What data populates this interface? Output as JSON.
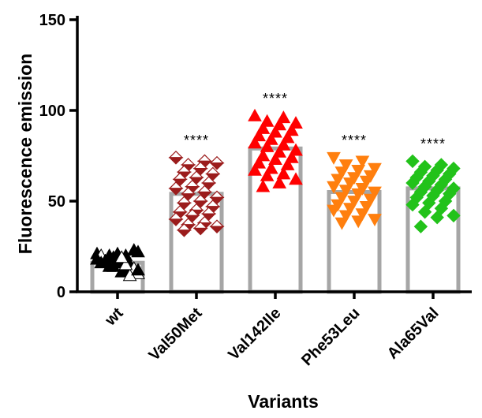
{
  "chart_data": {
    "type": "bar",
    "subtype": "bar-with-scatter-points",
    "title": "",
    "xlabel": "Variants",
    "ylabel": "Fluorescence emission",
    "ylim": [
      0,
      150
    ],
    "yticks": [
      0,
      50,
      100,
      150
    ],
    "categories": [
      "wt",
      "Val50Met",
      "Val142Ile",
      "Phe53Leu",
      "Ala65Val"
    ],
    "values": [
      16,
      54,
      79,
      55,
      57
    ],
    "significance": [
      "",
      "****",
      "****",
      "****",
      "****"
    ],
    "bar_color": "#a6a6a6",
    "points": [
      {
        "category": "wt",
        "marker": "triangle-up",
        "fill": "#000000",
        "alt_fill": "#ffffff",
        "stroke": "#000000",
        "values": [
          21,
          20,
          19,
          22,
          18,
          17,
          23,
          16,
          20,
          15,
          19,
          18,
          12,
          14,
          10,
          11,
          17,
          13,
          21,
          16,
          9,
          14,
          18,
          15,
          20,
          12,
          19,
          17
        ]
      },
      {
        "category": "Val50Met",
        "marker": "diamond-split",
        "fill": "#9b1c1c",
        "alt_fill": "#ffffff",
        "stroke": "#9b1c1c",
        "values": [
          74,
          72,
          70,
          71,
          68,
          66,
          65,
          63,
          62,
          60,
          58,
          57,
          55,
          54,
          52,
          50,
          49,
          47,
          45,
          44,
          43,
          42,
          40,
          38,
          37,
          36,
          35,
          34
        ]
      },
      {
        "category": "Val142Ile",
        "marker": "triangle-up",
        "fill": "#ff0000",
        "stroke": "#ff0000",
        "values": [
          97,
          96,
          94,
          93,
          92,
          90,
          89,
          88,
          86,
          85,
          84,
          82,
          81,
          80,
          78,
          77,
          75,
          74,
          73,
          71,
          70,
          68,
          67,
          65,
          64,
          62,
          60,
          58
        ]
      },
      {
        "category": "Phe53Leu",
        "marker": "triangle-down",
        "fill": "#ff7f0e",
        "stroke": "#ff7f0e",
        "values": [
          74,
          72,
          70,
          68,
          67,
          66,
          64,
          63,
          62,
          61,
          60,
          58,
          57,
          56,
          55,
          54,
          52,
          51,
          50,
          48,
          47,
          46,
          45,
          43,
          42,
          40,
          39,
          38
        ]
      },
      {
        "category": "Ala65Val",
        "marker": "diamond",
        "fill": "#22c21a",
        "stroke": "#22c21a",
        "values": [
          72,
          70,
          69,
          68,
          67,
          66,
          65,
          64,
          63,
          62,
          61,
          60,
          59,
          58,
          57,
          56,
          55,
          54,
          53,
          52,
          50,
          49,
          48,
          46,
          44,
          42,
          41,
          36
        ]
      }
    ]
  }
}
